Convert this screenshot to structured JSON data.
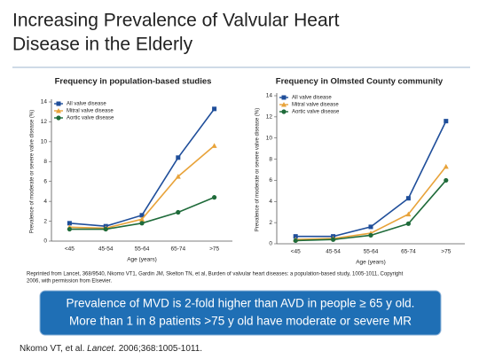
{
  "slide": {
    "title_lines": [
      "Increasing Prevalence of Valvular Heart",
      "Disease in the Elderly"
    ],
    "reprint_lines": [
      "Reprinted from Lancet, 368/9540, Nkomo VT1, Gardin JM, Skelton TN, et al, Burden of valvular heart diseases: a population-based study, 1005-1011, Copyright",
      "2006, with permission from Elsevier."
    ],
    "callout_lines": [
      "Prevalence of MVD is 2-fold higher than AVD in people ≥ 65 y old.",
      "More than 1 in 8 patients >75 y old have moderate or severe MR"
    ],
    "citation": [
      "Nkomo VT, et al. ",
      "Lancet",
      ". 2006;368:1005-1011."
    ]
  },
  "chart_data": [
    {
      "type": "line",
      "title": "Frequency in population-based  studies",
      "y_label": "Prevalence of moderate or severe valve disease (%)",
      "x_label": "Age (years)",
      "categories": [
        "<45",
        "45-54",
        "55-64",
        "65-74",
        ">75"
      ],
      "ylim": [
        0,
        14
      ],
      "yticks": [
        0,
        2,
        4,
        6,
        8,
        10,
        12,
        14
      ],
      "legend": "upper left",
      "series": [
        {
          "name": "All valve disease",
          "color": "#1f4e9a",
          "marker": "square",
          "values": [
            1.8,
            1.5,
            2.6,
            8.4,
            13.3
          ]
        },
        {
          "name": "Mitral valve disease",
          "color": "#e8a33a",
          "marker": "triangle",
          "values": [
            1.4,
            1.3,
            2.2,
            6.5,
            9.6
          ]
        },
        {
          "name": "Aortic valve disease",
          "color": "#1f6b3a",
          "marker": "circle",
          "values": [
            1.2,
            1.2,
            1.8,
            2.9,
            4.4
          ]
        }
      ]
    },
    {
      "type": "line",
      "title": "Frequency in Olmsted County community",
      "y_label": "Prevalence of moderate or severe valve disease (%)",
      "x_label": "Age (years)",
      "categories": [
        "<45",
        "45-54",
        "55-64",
        "65-74",
        ">75"
      ],
      "ylim": [
        0,
        14
      ],
      "yticks": [
        0,
        2,
        4,
        6,
        8,
        10,
        12,
        14
      ],
      "legend": "upper left",
      "series": [
        {
          "name": "All valve disease",
          "color": "#1f4e9a",
          "marker": "square",
          "values": [
            0.7,
            0.7,
            1.6,
            4.3,
            11.6
          ]
        },
        {
          "name": "Mitral valve disease",
          "color": "#e8a33a",
          "marker": "triangle",
          "values": [
            0.4,
            0.5,
            1.0,
            2.8,
            7.3
          ]
        },
        {
          "name": "Aortic valve disease",
          "color": "#1f6b3a",
          "marker": "circle",
          "values": [
            0.3,
            0.4,
            0.8,
            1.9,
            6.0
          ]
        }
      ]
    }
  ]
}
